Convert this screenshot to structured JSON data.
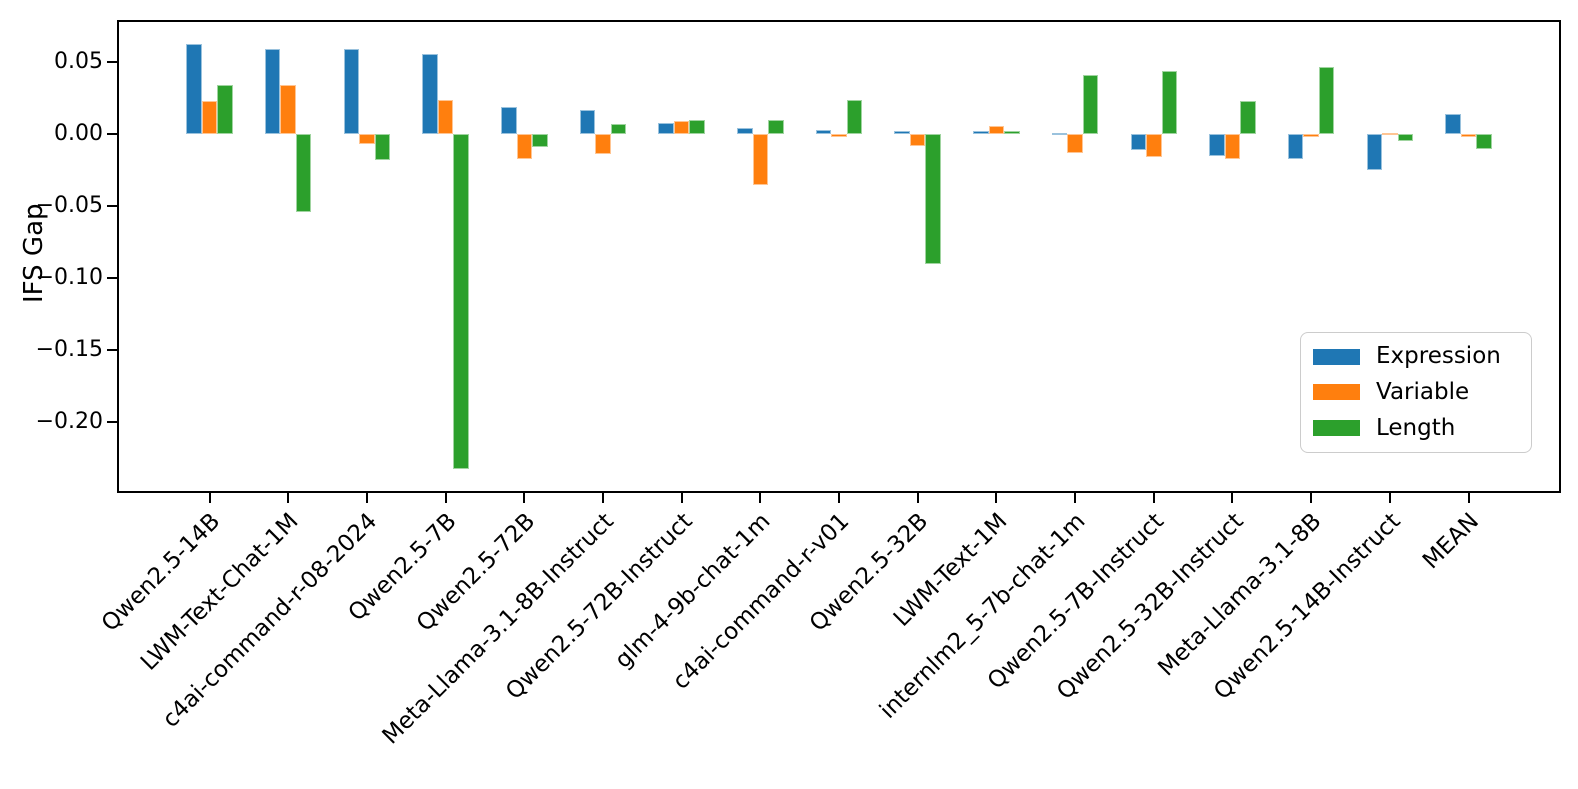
{
  "chart_data": {
    "type": "bar",
    "title": "",
    "xlabel": "",
    "ylabel": "IFS Gap",
    "categories": [
      "Qwen2.5-14B",
      "LWM-Text-Chat-1M",
      "c4ai-command-r-08-2024",
      "Qwen2.5-7B",
      "Qwen2.5-72B",
      "Meta-Llama-3.1-8B-Instruct",
      "Qwen2.5-72B-Instruct",
      "glm-4-9b-chat-1m",
      "c4ai-command-r-v01",
      "Qwen2.5-32B",
      "LWM-Text-1M",
      "internlm2_5-7b-chat-1m",
      "Qwen2.5-7B-Instruct",
      "Qwen2.5-32B-Instruct",
      "Meta-Llama-3.1-8B",
      "Qwen2.5-14B-Instruct",
      "MEAN"
    ],
    "series": [
      {
        "name": "Expression",
        "color": "#1f77b4",
        "values": [
          0.063,
          0.059,
          0.059,
          0.056,
          0.019,
          0.017,
          0.008,
          0.004,
          0.003,
          0.002,
          0.002,
          0.001,
          -0.011,
          -0.015,
          -0.017,
          -0.025,
          0.014
        ]
      },
      {
        "name": "Variable",
        "color": "#ff7f0e",
        "values": [
          0.023,
          0.034,
          -0.007,
          0.024,
          -0.017,
          -0.014,
          0.009,
          -0.035,
          -0.002,
          -0.008,
          0.006,
          -0.013,
          -0.016,
          -0.017,
          -0.002,
          0.001,
          -0.002
        ]
      },
      {
        "name": "Length",
        "color": "#2ca02c",
        "values": [
          0.034,
          -0.054,
          -0.018,
          -0.233,
          -0.009,
          0.007,
          0.01,
          0.01,
          0.024,
          -0.09,
          0.002,
          0.041,
          0.044,
          0.023,
          0.047,
          -0.005,
          -0.01
        ]
      }
    ],
    "ylim": [
      -0.248,
      0.078
    ],
    "yticks": [
      0.05,
      0.0,
      -0.05,
      -0.1,
      -0.15,
      -0.2
    ],
    "ytick_labels": [
      "0.05",
      "0.00",
      "−0.05",
      "−0.10",
      "−0.15",
      "−0.20"
    ],
    "grid": false,
    "legend_position": "lower right"
  }
}
